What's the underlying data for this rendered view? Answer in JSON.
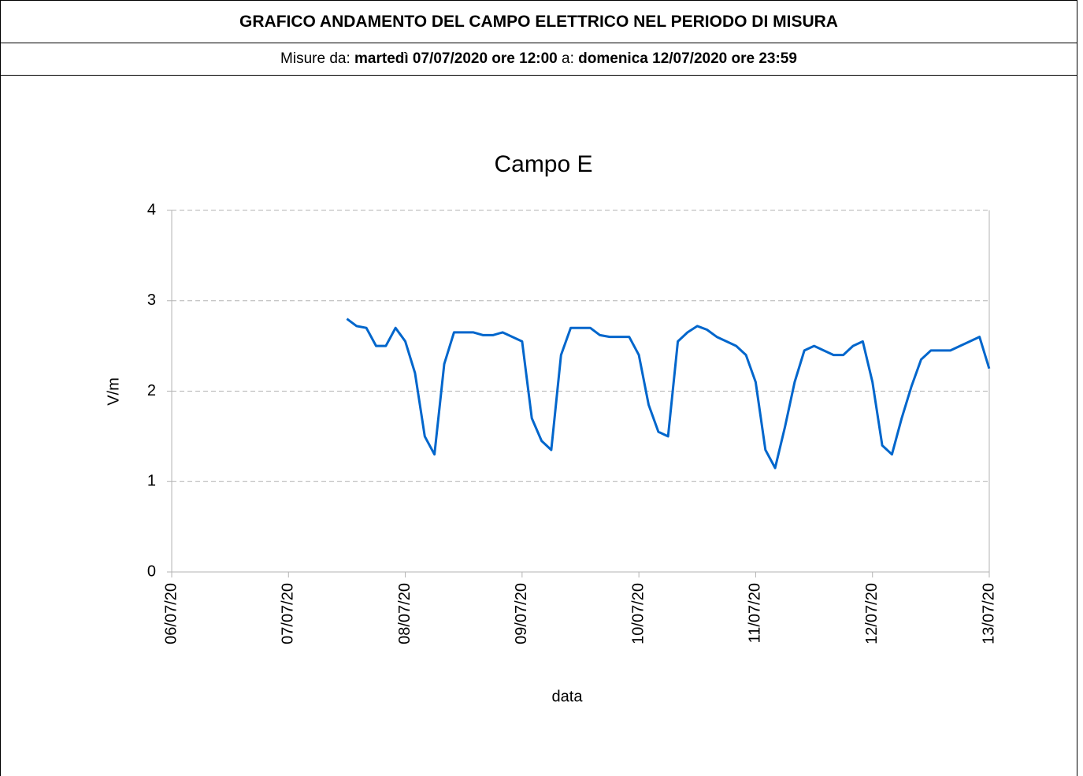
{
  "header": {
    "title": "GRAFICO ANDAMENTO DEL CAMPO ELETTRICO NEL PERIODO DI MISURA",
    "subtitle": [
      "Misure da: ",
      "martedì 07/07/2020 ore 12:00",
      " a: ",
      "domenica 12/07/2020 ore 23:59"
    ]
  },
  "chart_data": {
    "type": "line",
    "title": "Campo E",
    "x_label": "data",
    "y_label": "V/m",
    "x": [
      "07/07/20 12:00",
      "07/07/20 14:00",
      "07/07/20 16:00",
      "07/07/20 18:00",
      "07/07/20 20:00",
      "07/07/20 22:00",
      "08/07/20 00:00",
      "08/07/20 02:00",
      "08/07/20 04:00",
      "08/07/20 06:00",
      "08/07/20 08:00",
      "08/07/20 10:00",
      "08/07/20 12:00",
      "08/07/20 14:00",
      "08/07/20 16:00",
      "08/07/20 18:00",
      "08/07/20 20:00",
      "08/07/20 22:00",
      "09/07/20 00:00",
      "09/07/20 02:00",
      "09/07/20 04:00",
      "09/07/20 06:00",
      "09/07/20 08:00",
      "09/07/20 10:00",
      "09/07/20 12:00",
      "09/07/20 14:00",
      "09/07/20 16:00",
      "09/07/20 18:00",
      "09/07/20 20:00",
      "09/07/20 22:00",
      "10/07/20 00:00",
      "10/07/20 02:00",
      "10/07/20 04:00",
      "10/07/20 06:00",
      "10/07/20 08:00",
      "10/07/20 10:00",
      "10/07/20 12:00",
      "10/07/20 14:00",
      "10/07/20 16:00",
      "10/07/20 18:00",
      "10/07/20 20:00",
      "10/07/20 22:00",
      "11/07/20 00:00",
      "11/07/20 02:00",
      "11/07/20 04:00",
      "11/07/20 06:00",
      "11/07/20 08:00",
      "11/07/20 10:00",
      "11/07/20 12:00",
      "11/07/20 14:00",
      "11/07/20 16:00",
      "11/07/20 18:00",
      "11/07/20 20:00",
      "11/07/20 22:00",
      "12/07/20 00:00",
      "12/07/20 02:00",
      "12/07/20 04:00",
      "12/07/20 06:00",
      "12/07/20 08:00",
      "12/07/20 10:00",
      "12/07/20 12:00",
      "12/07/20 14:00",
      "12/07/20 16:00",
      "12/07/20 18:00",
      "12/07/20 20:00",
      "12/07/20 22:00",
      "12/07/20 23:59"
    ],
    "series": [
      {
        "name": "Campo E",
        "color": "#0066cc",
        "values": [
          2.8,
          2.72,
          2.7,
          2.5,
          2.5,
          2.7,
          2.55,
          2.2,
          1.5,
          1.3,
          2.3,
          2.65,
          2.65,
          2.65,
          2.62,
          2.62,
          2.65,
          2.6,
          2.55,
          1.7,
          1.45,
          1.35,
          2.4,
          2.7,
          2.7,
          2.7,
          2.62,
          2.6,
          2.6,
          2.6,
          2.4,
          1.85,
          1.55,
          1.5,
          2.55,
          2.65,
          2.72,
          2.68,
          2.6,
          2.55,
          2.5,
          2.4,
          2.1,
          1.35,
          1.15,
          1.6,
          2.1,
          2.45,
          2.5,
          2.45,
          2.4,
          2.4,
          2.5,
          2.55,
          2.1,
          1.4,
          1.3,
          1.7,
          2.05,
          2.35,
          2.45,
          2.45,
          2.45,
          2.5,
          2.55,
          2.6,
          2.25
        ]
      }
    ],
    "xlim": [
      "06/07/20",
      "13/07/20"
    ],
    "xticks": [
      "06/07/20",
      "07/07/20",
      "08/07/20",
      "09/07/20",
      "10/07/20",
      "11/07/20",
      "12/07/20",
      "13/07/20"
    ],
    "ylim": [
      0,
      4
    ],
    "yticks": [
      0,
      1,
      2,
      3,
      4
    ],
    "grid": true
  }
}
